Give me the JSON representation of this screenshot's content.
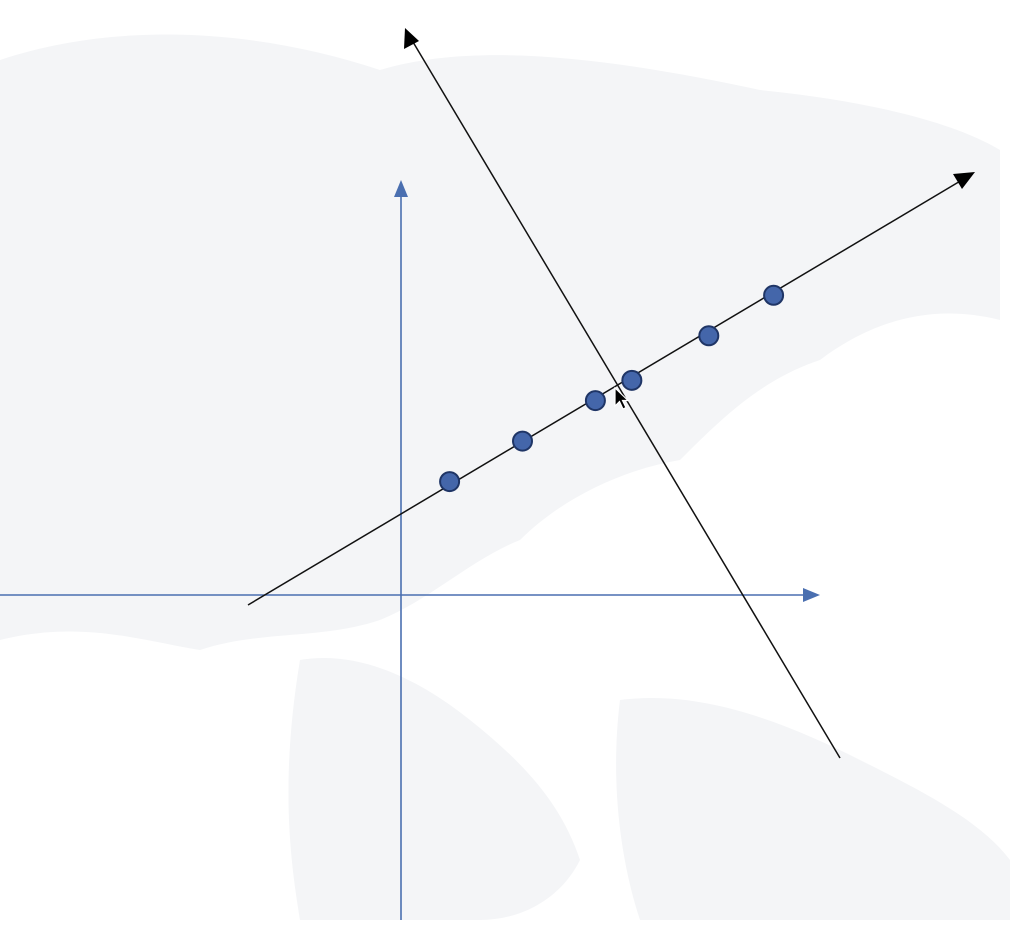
{
  "diagram": {
    "colors": {
      "axis": "#4a6fb0",
      "principal_axis": "#111111",
      "point_fill": "#4466aa",
      "point_stroke": "#1f3566",
      "background_map": "#f4f5f7"
    },
    "points": [
      {
        "x": 0.6,
        "y": 1.4
      },
      {
        "x": 1.5,
        "y": 1.9
      },
      {
        "x": 2.4,
        "y": 2.4
      },
      {
        "x": 2.85,
        "y": 2.65
      },
      {
        "x": 3.8,
        "y": 3.2
      },
      {
        "x": 4.6,
        "y": 3.7
      }
    ],
    "principal_component_1": {
      "arrow": "up-right"
    },
    "principal_component_2": {
      "arrow": "up-left"
    },
    "cursor": {
      "icon": "arrow-pointer-icon"
    }
  }
}
